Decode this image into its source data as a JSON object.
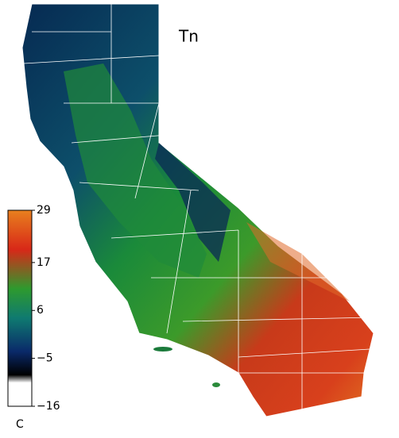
{
  "map": {
    "title": "Tn",
    "colorbar": {
      "lim": [
        -16,
        29
      ],
      "ticks": [
        29,
        17,
        6,
        {
          "value": -5,
          "label": "−5"
        },
        {
          "value": -16,
          "label": "−16"
        }
      ],
      "unit": "C"
    }
  }
}
